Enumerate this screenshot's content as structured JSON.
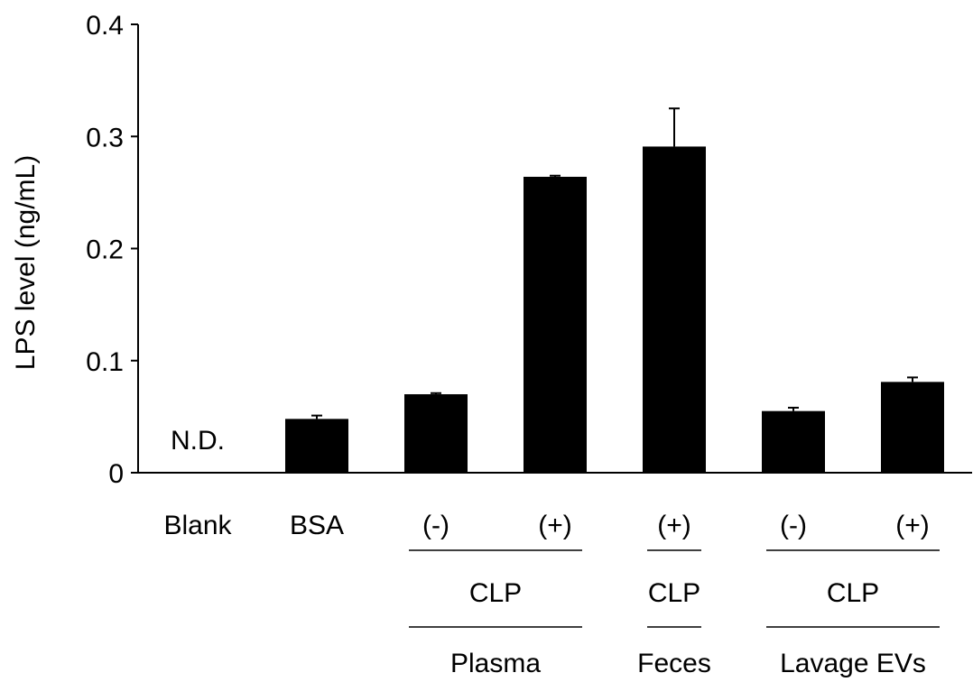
{
  "chart_data": {
    "type": "bar",
    "ylabel": "LPS level (ng/mL)",
    "ylim": [
      0,
      0.4
    ],
    "yticks": [
      {
        "value": 0,
        "label": "0"
      },
      {
        "value": 0.1,
        "label": "0.1"
      },
      {
        "value": 0.2,
        "label": "0.2"
      },
      {
        "value": 0.3,
        "label": "0.3"
      },
      {
        "value": 0.4,
        "label": "0.4"
      }
    ],
    "categories": [
      "Blank",
      "BSA",
      "(-)",
      "(+)",
      "(+)",
      "(-)",
      "(+)"
    ],
    "values": [
      null,
      0.048,
      0.07,
      0.264,
      0.291,
      0.055,
      0.081
    ],
    "errors": [
      null,
      0.003,
      0.001,
      0.001,
      0.034,
      0.003,
      0.004
    ],
    "annotations": [
      {
        "category_index": 0,
        "text": "N.D."
      }
    ],
    "groups": [
      {
        "start": 2,
        "end": 3,
        "row1": "CLP",
        "row2": "Plasma"
      },
      {
        "start": 4,
        "end": 4,
        "row1": "CLP",
        "row2": "Feces"
      },
      {
        "start": 5,
        "end": 6,
        "row1": "CLP",
        "row2": "Lavage EVs"
      }
    ],
    "bar_color": "#000000",
    "grid": false
  }
}
